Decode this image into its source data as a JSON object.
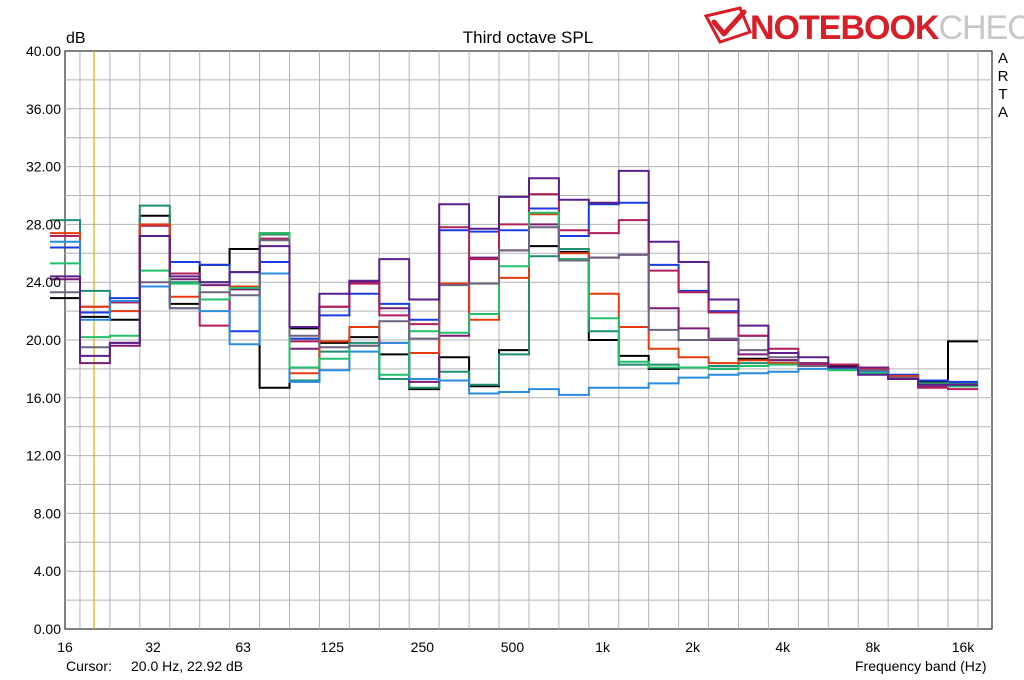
{
  "logo": {
    "bold": "NOTEBOOK",
    "light": "CHECK"
  },
  "side_label": [
    "A",
    "R",
    "T",
    "A"
  ],
  "cursor": {
    "label": "Cursor:",
    "value": "20.0 Hz, 22.92 dB"
  },
  "colors": {
    "grid": "#b4b4b4",
    "cursor_line": "#d2b400",
    "s1": "#000000",
    "s2": "#1f8f73",
    "s3": "#7c1c76",
    "s4": "#1a3de0",
    "s5": "#b21f5c",
    "s6": "#e83a10",
    "s7": "#2a8cdf",
    "s8": "#23bf6a",
    "s9": "#6e6480",
    "s10": "#5a1f8a"
  },
  "chart_data": {
    "type": "line",
    "title": "Third octave SPL",
    "ylabel": "dB",
    "xlabel": "Frequency band (Hz)",
    "ylim": [
      0,
      40
    ],
    "yticks": [
      "0.00",
      "4.00",
      "8.00",
      "12.00",
      "16.00",
      "20.00",
      "24.00",
      "28.00",
      "32.00",
      "36.00",
      "40.00"
    ],
    "x_tick_labels": [
      "16",
      "32",
      "63",
      "125",
      "250",
      "500",
      "1k",
      "2k",
      "4k",
      "8k",
      "16k"
    ],
    "bands": [
      "20",
      "25",
      "31.5",
      "40",
      "50",
      "63",
      "80",
      "100",
      "125",
      "160",
      "200",
      "250",
      "315",
      "400",
      "500",
      "630",
      "800",
      "1k",
      "1.25k",
      "1.6k",
      "2k",
      "2.5k",
      "3.15k",
      "4k",
      "5k",
      "6.3k",
      "8k",
      "10k",
      "12.5k",
      "16k",
      "20k"
    ],
    "cursor_hz": 20,
    "grid": true,
    "series": [
      {
        "color_key": "s1",
        "values": [
          22.9,
          21.6,
          21.4,
          28.6,
          22.5,
          25.2,
          26.3,
          16.7,
          20.8,
          19.8,
          20.2,
          19.0,
          16.6,
          18.8,
          16.8,
          19.3,
          26.5,
          26.1,
          20.0,
          18.9,
          18.0,
          18.1,
          18.0,
          18.7,
          18.6,
          18.3,
          18.2,
          18.0,
          17.4,
          17.1,
          19.9
        ]
      },
      {
        "color_key": "s2",
        "values": [
          28.3,
          23.4,
          22.6,
          29.3,
          24.0,
          24.0,
          24.7,
          27.3,
          17.2,
          19.2,
          19.8,
          17.3,
          16.7,
          17.8,
          16.9,
          19.0,
          25.8,
          26.3,
          20.6,
          18.3,
          18.3,
          18.1,
          18.2,
          18.4,
          18.4,
          18.2,
          18.1,
          17.8,
          17.5,
          17.2,
          17.0
        ]
      },
      {
        "color_key": "s3",
        "values": [
          24.2,
          18.4,
          19.6,
          27.2,
          24.2,
          23.8,
          23.5,
          27.0,
          19.4,
          22.3,
          24.0,
          22.2,
          17.1,
          20.3,
          25.7,
          26.2,
          28.0,
          25.6,
          25.7,
          25.9,
          22.2,
          20.8,
          20.0,
          19.0,
          18.6,
          18.4,
          18.3,
          18.1,
          17.4,
          16.8,
          16.8
        ]
      },
      {
        "color_key": "s4",
        "values": [
          26.4,
          21.9,
          22.9,
          27.2,
          25.4,
          25.2,
          20.6,
          25.4,
          20.1,
          21.7,
          23.2,
          22.5,
          21.4,
          27.6,
          27.5,
          27.6,
          29.1,
          27.2,
          29.4,
          29.5,
          25.2,
          23.4,
          22.0,
          20.3,
          19.1,
          18.2,
          18.0,
          18.0,
          17.6,
          17.2,
          17.1
        ]
      },
      {
        "color_key": "s5",
        "values": [
          27.2,
          22.3,
          22.6,
          27.9,
          24.6,
          21.0,
          23.6,
          27.0,
          19.9,
          22.3,
          23.9,
          21.7,
          21.1,
          27.8,
          25.6,
          28.0,
          30.1,
          27.6,
          27.4,
          28.3,
          24.8,
          23.3,
          21.9,
          20.3,
          19.4,
          18.3,
          18.3,
          18.0,
          17.5,
          16.7,
          16.6
        ]
      },
      {
        "color_key": "s6",
        "values": [
          27.4,
          22.3,
          22.0,
          28.0,
          23.0,
          22.8,
          23.7,
          27.4,
          17.7,
          19.9,
          20.9,
          19.8,
          19.1,
          23.9,
          21.4,
          24.3,
          28.7,
          26.0,
          23.2,
          20.9,
          19.4,
          18.8,
          18.4,
          18.6,
          18.4,
          18.2,
          18.1,
          17.8,
          17.5,
          16.9,
          16.9
        ]
      },
      {
        "color_key": "s7",
        "values": [
          26.8,
          21.4,
          22.7,
          23.7,
          22.2,
          22.0,
          19.7,
          24.6,
          17.1,
          17.9,
          19.2,
          19.8,
          17.3,
          17.2,
          16.3,
          16.4,
          16.6,
          16.2,
          16.7,
          16.7,
          17.0,
          17.4,
          17.6,
          17.7,
          17.8,
          18.0,
          18.0,
          17.8,
          17.3,
          16.9,
          16.9
        ]
      },
      {
        "color_key": "s8",
        "values": [
          25.3,
          20.2,
          20.3,
          24.8,
          23.9,
          22.8,
          23.6,
          27.4,
          18.1,
          18.7,
          19.6,
          17.6,
          20.6,
          20.5,
          21.8,
          25.1,
          28.8,
          25.6,
          21.5,
          18.5,
          18.1,
          18.1,
          18.0,
          18.2,
          18.3,
          18.2,
          17.9,
          17.7,
          17.3,
          17.0,
          16.8
        ]
      },
      {
        "color_key": "s9",
        "values": [
          23.3,
          19.5,
          19.8,
          24.0,
          22.2,
          23.3,
          23.1,
          26.9,
          20.3,
          19.5,
          19.6,
          21.3,
          20.1,
          23.8,
          23.9,
          26.2,
          27.8,
          25.5,
          25.7,
          25.9,
          20.7,
          20.0,
          20.1,
          19.3,
          18.8,
          18.2,
          18.1,
          17.9,
          17.4,
          16.9,
          16.9
        ]
      },
      {
        "color_key": "s10",
        "values": [
          24.4,
          18.9,
          19.8,
          27.2,
          24.4,
          24.0,
          24.7,
          26.5,
          20.9,
          23.2,
          24.1,
          25.6,
          22.8,
          29.4,
          27.7,
          29.9,
          31.2,
          29.7,
          29.5,
          31.7,
          26.8,
          25.4,
          22.8,
          21.0,
          19.1,
          18.8,
          18.1,
          17.6,
          17.3,
          16.9,
          16.9
        ]
      }
    ]
  }
}
